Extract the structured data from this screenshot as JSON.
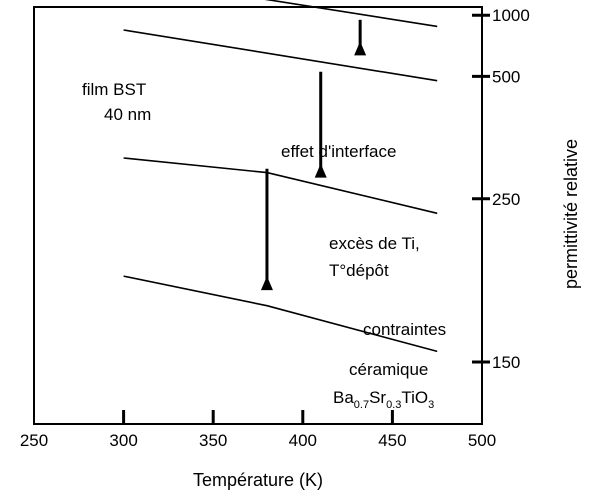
{
  "chart_data": {
    "type": "line",
    "title": "",
    "xlabel": "Température (K)",
    "ylabel": "permittivité relative",
    "x_range": [
      250,
      500
    ],
    "x_ticks": [
      250,
      300,
      350,
      400,
      450,
      500
    ],
    "y_scale": "reciprocal",
    "y_ticks": [
      150,
      250,
      500,
      1000
    ],
    "grid": false,
    "series": [
      {
        "points": [
          [
            300,
            190
          ],
          [
            380,
            174
          ],
          [
            475,
            154
          ]
        ]
      },
      {
        "points": [
          [
            300,
            300
          ],
          [
            380,
            280
          ],
          [
            475,
            236
          ]
        ]
      },
      {
        "points": [
          [
            300,
            805
          ],
          [
            475,
            483
          ]
        ]
      },
      {
        "points": [
          [
            260,
            1600
          ],
          [
            285,
            1720
          ],
          [
            312,
            2000
          ],
          [
            327,
            2000
          ],
          [
            475,
            845
          ]
        ]
      }
    ],
    "annotations": [
      {
        "lines": [
          "film BST",
          "40 nm"
        ]
      },
      {
        "lines": [
          "effet d'interface"
        ],
        "arrow": {
          "x": 380,
          "from": 285,
          "to": 190
        }
      },
      {
        "lines": [
          "excès de Ti,",
          "T°dépôt"
        ],
        "arrow": {
          "x": 410,
          "from": 520,
          "to": 292
        }
      },
      {
        "lines": [
          "contraintes"
        ],
        "arrow": {
          "x": 432,
          "from": 930,
          "to": 700
        }
      },
      {
        "lines": [
          "céramique"
        ],
        "formula": [
          {
            "t": "Ba",
            "sub": "0.7"
          },
          {
            "t": "Sr",
            "sub": "0.3"
          },
          {
            "t": "TiO",
            "sub": "3"
          }
        ]
      }
    ]
  }
}
